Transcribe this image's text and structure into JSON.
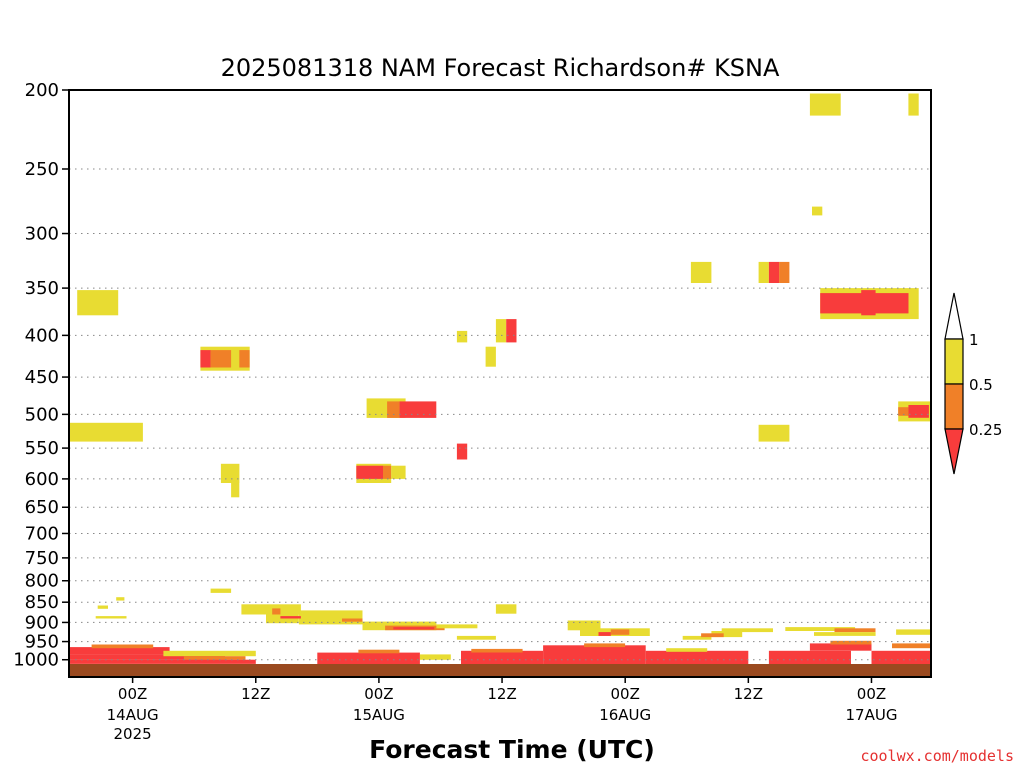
{
  "chart_data": {
    "type": "heatmap",
    "title": "2025081318 NAM Forecast Richardson# KSNA",
    "xlabel": "Forecast Time (UTC)",
    "ylabel": "",
    "credit": "coolwx.com/models",
    "y_scale": "log",
    "y_inverted": true,
    "ylim": [
      1050,
      200
    ],
    "xlim": [
      -6.2,
      77.8
    ],
    "x_unit": "hours since 2025-08-14 00Z",
    "grid": true,
    "y_ticks": [
      200,
      250,
      300,
      350,
      400,
      450,
      500,
      550,
      600,
      650,
      700,
      750,
      800,
      850,
      900,
      950,
      1000
    ],
    "x_ticks": [
      {
        "x": 0,
        "label": "00Z",
        "date": "14AUG",
        "year": "2025"
      },
      {
        "x": 12,
        "label": "12Z",
        "date": "",
        "year": ""
      },
      {
        "x": 24,
        "label": "00Z",
        "date": "15AUG",
        "year": ""
      },
      {
        "x": 36,
        "label": "12Z",
        "date": "",
        "year": ""
      },
      {
        "x": 48,
        "label": "00Z",
        "date": "16AUG",
        "year": ""
      },
      {
        "x": 60,
        "label": "12Z",
        "date": "",
        "year": ""
      },
      {
        "x": 72,
        "label": "00Z",
        "date": "17AUG",
        "year": ""
      }
    ],
    "legend": {
      "placement": "right",
      "entries": [
        {
          "label": "1",
          "range": ">1",
          "color": "#ffffff"
        },
        {
          "label": "0.5",
          "range": "0.5-1",
          "color": "#e8dc32"
        },
        {
          "label": "0.25",
          "range": "0.25-0.5",
          "color": "#f08028"
        },
        {
          "label": "",
          "range": "<0.25",
          "color": "#f83c3c"
        }
      ]
    },
    "colors": {
      "y": "#e8dc32",
      "o": "#f08028",
      "r": "#f83c3c",
      "ground": "#9a4a20"
    },
    "cells": [
      {
        "x0": -5.4,
        "x1": -1.4,
        "p0": 352,
        "p1": 378,
        "c": "y"
      },
      {
        "x0": -6.2,
        "x1": 1.0,
        "p0": 512,
        "p1": 540,
        "c": "y"
      },
      {
        "x0": 6.6,
        "x1": 11.4,
        "p0": 413,
        "p1": 442,
        "c": "y"
      },
      {
        "x0": 6.6,
        "x1": 7.6,
        "p0": 417,
        "p1": 438,
        "c": "r"
      },
      {
        "x0": 7.6,
        "x1": 9.6,
        "p0": 417,
        "p1": 438,
        "c": "o"
      },
      {
        "x0": 10.4,
        "x1": 11.4,
        "p0": 417,
        "p1": 438,
        "c": "o"
      },
      {
        "x0": 8.6,
        "x1": 10.4,
        "p0": 575,
        "p1": 607,
        "c": "y"
      },
      {
        "x0": 9.6,
        "x1": 10.4,
        "p0": 607,
        "p1": 632,
        "c": "y"
      },
      {
        "x0": 7.6,
        "x1": 9.6,
        "p0": 818,
        "p1": 828,
        "c": "y"
      },
      {
        "x0": 22.8,
        "x1": 26.6,
        "p0": 478,
        "p1": 505,
        "c": "y"
      },
      {
        "x0": 26.0,
        "x1": 29.6,
        "p0": 482,
        "p1": 505,
        "c": "r"
      },
      {
        "x0": 24.8,
        "x1": 26.0,
        "p0": 482,
        "p1": 505,
        "c": "o"
      },
      {
        "x0": 21.8,
        "x1": 25.2,
        "p0": 575,
        "p1": 607,
        "c": "y"
      },
      {
        "x0": 21.8,
        "x1": 24.4,
        "p0": 578,
        "p1": 600,
        "c": "r"
      },
      {
        "x0": 24.4,
        "x1": 25.2,
        "p0": 578,
        "p1": 600,
        "c": "o"
      },
      {
        "x0": 25.2,
        "x1": 26.6,
        "p0": 578,
        "p1": 600,
        "c": "y"
      },
      {
        "x0": 31.6,
        "x1": 32.6,
        "p0": 395,
        "p1": 408,
        "c": "y"
      },
      {
        "x0": 31.6,
        "x1": 32.6,
        "p0": 543,
        "p1": 568,
        "c": "r"
      },
      {
        "x0": 34.4,
        "x1": 35.4,
        "p0": 413,
        "p1": 437,
        "c": "y"
      },
      {
        "x0": 35.4,
        "x1": 36.4,
        "p0": 382,
        "p1": 408,
        "c": "y"
      },
      {
        "x0": 36.4,
        "x1": 37.4,
        "p0": 382,
        "p1": 408,
        "c": "r"
      },
      {
        "x0": 35.4,
        "x1": 37.4,
        "p0": 855,
        "p1": 878,
        "c": "y"
      },
      {
        "x0": 54.4,
        "x1": 56.4,
        "p0": 325,
        "p1": 345,
        "c": "y"
      },
      {
        "x0": 66.0,
        "x1": 69.0,
        "p0": 202,
        "p1": 215,
        "c": "y"
      },
      {
        "x0": 75.6,
        "x1": 76.6,
        "p0": 202,
        "p1": 215,
        "c": "y"
      },
      {
        "x0": 66.2,
        "x1": 67.2,
        "p0": 278,
        "p1": 285,
        "c": "y"
      },
      {
        "x0": 61.0,
        "x1": 62.0,
        "p0": 325,
        "p1": 345,
        "c": "y"
      },
      {
        "x0": 62.0,
        "x1": 63.0,
        "p0": 325,
        "p1": 345,
        "c": "r"
      },
      {
        "x0": 63.0,
        "x1": 64.0,
        "p0": 325,
        "p1": 345,
        "c": "o"
      },
      {
        "x0": 67.0,
        "x1": 76.6,
        "p0": 350,
        "p1": 382,
        "c": "y"
      },
      {
        "x0": 67.0,
        "x1": 75.6,
        "p0": 355,
        "p1": 376,
        "c": "r"
      },
      {
        "x0": 71.0,
        "x1": 72.4,
        "p0": 352,
        "p1": 378,
        "c": "r"
      },
      {
        "x0": 61.0,
        "x1": 64.0,
        "p0": 515,
        "p1": 540,
        "c": "y"
      },
      {
        "x0": 74.6,
        "x1": 77.8,
        "p0": 482,
        "p1": 510,
        "c": "y"
      },
      {
        "x0": 75.6,
        "x1": 77.6,
        "p0": 487,
        "p1": 505,
        "c": "r"
      },
      {
        "x0": 74.6,
        "x1": 75.6,
        "p0": 490,
        "p1": 502,
        "c": "o"
      },
      {
        "x0": -3.4,
        "x1": -2.4,
        "p0": 858,
        "p1": 866,
        "c": "y"
      },
      {
        "x0": -1.6,
        "x1": -0.8,
        "p0": 838,
        "p1": 846,
        "c": "y"
      },
      {
        "x0": -3.6,
        "x1": -0.6,
        "p0": 884,
        "p1": 890,
        "c": "y"
      },
      {
        "x0": 10.6,
        "x1": 16.4,
        "p0": 855,
        "p1": 880,
        "c": "y"
      },
      {
        "x0": 13.0,
        "x1": 16.2,
        "p0": 880,
        "p1": 902,
        "c": "y"
      },
      {
        "x0": 16.2,
        "x1": 22.4,
        "p0": 870,
        "p1": 905,
        "c": "y"
      },
      {
        "x0": 13.6,
        "x1": 14.4,
        "p0": 865,
        "p1": 880,
        "c": "o"
      },
      {
        "x0": 14.4,
        "x1": 16.4,
        "p0": 884,
        "p1": 890,
        "c": "r"
      },
      {
        "x0": 20.4,
        "x1": 22.4,
        "p0": 890,
        "p1": 898,
        "c": "o"
      },
      {
        "x0": 22.4,
        "x1": 29.6,
        "p0": 898,
        "p1": 920,
        "c": "y"
      },
      {
        "x0": 24.6,
        "x1": 30.4,
        "p0": 908,
        "p1": 920,
        "c": "o"
      },
      {
        "x0": 25.4,
        "x1": 29.4,
        "p0": 912,
        "p1": 918,
        "c": "r"
      },
      {
        "x0": 29.6,
        "x1": 33.6,
        "p0": 905,
        "p1": 915,
        "c": "y"
      },
      {
        "x0": 31.6,
        "x1": 35.4,
        "p0": 935,
        "p1": 945,
        "c": "y"
      },
      {
        "x0": 42.4,
        "x1": 45.6,
        "p0": 895,
        "p1": 920,
        "c": "y"
      },
      {
        "x0": 43.6,
        "x1": 50.4,
        "p0": 915,
        "p1": 935,
        "c": "y"
      },
      {
        "x0": 46.6,
        "x1": 48.4,
        "p0": 918,
        "p1": 932,
        "c": "o"
      },
      {
        "x0": 45.4,
        "x1": 46.6,
        "p0": 925,
        "p1": 935,
        "c": "r"
      },
      {
        "x0": 53.6,
        "x1": 56.4,
        "p0": 935,
        "p1": 945,
        "c": "y"
      },
      {
        "x0": 56.4,
        "x1": 59.4,
        "p0": 922,
        "p1": 938,
        "c": "y"
      },
      {
        "x0": 57.4,
        "x1": 62.4,
        "p0": 915,
        "p1": 925,
        "c": "y"
      },
      {
        "x0": 55.4,
        "x1": 57.6,
        "p0": 928,
        "p1": 938,
        "c": "o"
      },
      {
        "x0": 63.6,
        "x1": 70.4,
        "p0": 912,
        "p1": 922,
        "c": "y"
      },
      {
        "x0": 68.4,
        "x1": 72.4,
        "p0": 915,
        "p1": 925,
        "c": "o"
      },
      {
        "x0": 66.4,
        "x1": 72.4,
        "p0": 925,
        "p1": 935,
        "c": "y"
      },
      {
        "x0": 74.4,
        "x1": 77.8,
        "p0": 918,
        "p1": 932,
        "c": "y"
      },
      {
        "x0": -6.2,
        "x1": 3.6,
        "p0": 965,
        "p1": 985,
        "c": "r"
      },
      {
        "x0": -6.2,
        "x1": 9.0,
        "p0": 985,
        "p1": 1000,
        "c": "r"
      },
      {
        "x0": -4.0,
        "x1": 2.0,
        "p0": 958,
        "p1": 968,
        "c": "o"
      },
      {
        "x0": 3.0,
        "x1": 12.0,
        "p0": 975,
        "p1": 990,
        "c": "y"
      },
      {
        "x0": 5.0,
        "x1": 11.0,
        "p0": 990,
        "p1": 1000,
        "c": "o"
      },
      {
        "x0": -6.2,
        "x1": 12.0,
        "p0": 1000,
        "p1": 1012,
        "c": "r"
      },
      {
        "x0": 18.0,
        "x1": 28.0,
        "p0": 980,
        "p1": 1012,
        "c": "r"
      },
      {
        "x0": 22.0,
        "x1": 26.0,
        "p0": 972,
        "p1": 982,
        "c": "o"
      },
      {
        "x0": 28.0,
        "x1": 31.0,
        "p0": 985,
        "p1": 1000,
        "c": "y"
      },
      {
        "x0": 32.0,
        "x1": 40.0,
        "p0": 975,
        "p1": 1012,
        "c": "r"
      },
      {
        "x0": 33.0,
        "x1": 38.0,
        "p0": 970,
        "p1": 980,
        "c": "o"
      },
      {
        "x0": 40.0,
        "x1": 50.0,
        "p0": 960,
        "p1": 1012,
        "c": "r"
      },
      {
        "x0": 44.0,
        "x1": 48.0,
        "p0": 955,
        "p1": 965,
        "c": "o"
      },
      {
        "x0": 50.0,
        "x1": 60.0,
        "p0": 975,
        "p1": 1012,
        "c": "r"
      },
      {
        "x0": 52.0,
        "x1": 56.0,
        "p0": 968,
        "p1": 978,
        "c": "y"
      },
      {
        "x0": 62.0,
        "x1": 70.0,
        "p0": 975,
        "p1": 1012,
        "c": "r"
      },
      {
        "x0": 66.0,
        "x1": 72.0,
        "p0": 955,
        "p1": 975,
        "c": "r"
      },
      {
        "x0": 68.0,
        "x1": 72.0,
        "p0": 948,
        "p1": 958,
        "c": "o"
      },
      {
        "x0": 72.0,
        "x1": 77.8,
        "p0": 975,
        "p1": 1012,
        "c": "r"
      },
      {
        "x0": 74.0,
        "x1": 77.8,
        "p0": 955,
        "p1": 968,
        "c": "o"
      }
    ]
  }
}
